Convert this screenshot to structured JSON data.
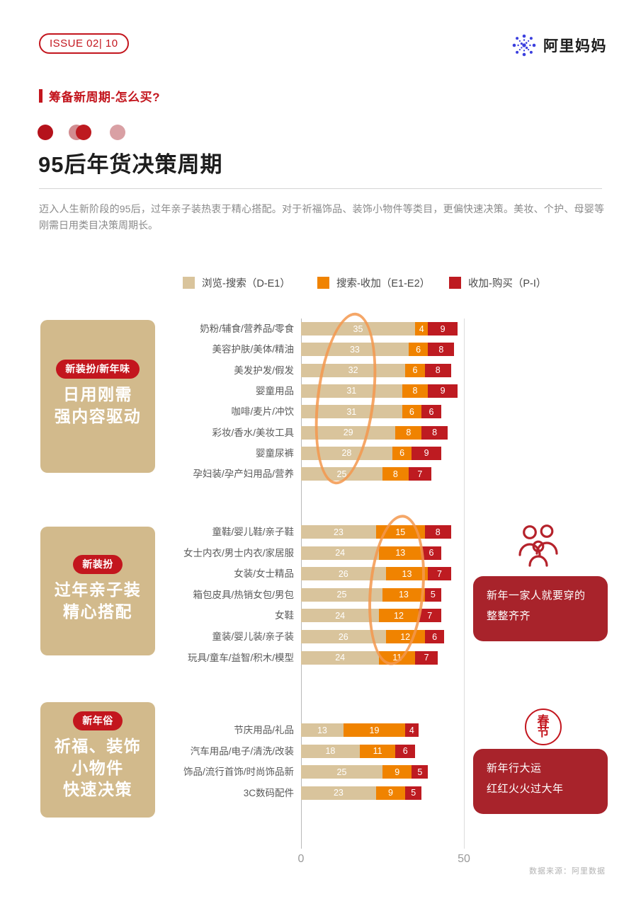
{
  "header": {
    "issue": "ISSUE 02| 10",
    "brand": "阿里妈妈"
  },
  "section": {
    "label": "筹备新周期-怎么买?",
    "title": "95后年货决策周期",
    "description": "迈入人生新阶段的95后，过年亲子装热衷于精心搭配。对于祈福饰品、装饰小物件等类目，更偏快速决策。美妆、个护、母婴等刚需日用类目决策周期长。"
  },
  "legend": [
    {
      "label": "浏览-搜索（D-E1）",
      "color": "#D9C49C"
    },
    {
      "label": "搜索-收加（E1-E2）",
      "color": "#F08300"
    },
    {
      "label": "收加-购买（P-I）",
      "color": "#BE1B21"
    }
  ],
  "chart_data": {
    "type": "bar",
    "orientation": "horizontal",
    "stacked": true,
    "xlim": [
      0,
      50
    ],
    "x_ticks": [
      0,
      50
    ],
    "grid": "vertical-ticks-only",
    "series_names": [
      "浏览-搜索（D-E1）",
      "搜索-收加（E1-E2）",
      "收加-购买（P-I）"
    ],
    "groups": [
      {
        "badge": "新装扮/新年味",
        "title_lines": [
          "日用刚需",
          "强内容驱动"
        ],
        "highlight": "first-segment-circled",
        "rows": [
          {
            "label": "奶粉/辅食/营养品/零食",
            "values": [
              35,
              4,
              9
            ]
          },
          {
            "label": "美容护肤/美体/精油",
            "values": [
              33,
              6,
              8
            ]
          },
          {
            "label": "美发护发/假发",
            "values": [
              32,
              6,
              8
            ]
          },
          {
            "label": "婴童用品",
            "values": [
              31,
              8,
              9
            ]
          },
          {
            "label": "咖啡/麦片/冲饮",
            "values": [
              31,
              6,
              6
            ]
          },
          {
            "label": "彩妆/香水/美妆工具",
            "values": [
              29,
              8,
              8
            ]
          },
          {
            "label": "婴童尿裤",
            "values": [
              28,
              6,
              9
            ]
          },
          {
            "label": "孕妇装/孕产妇用品/营养",
            "values": [
              25,
              8,
              7
            ]
          }
        ]
      },
      {
        "badge": "新装扮",
        "title_lines": [
          "过年亲子装",
          "精心搭配"
        ],
        "highlight": "middle-segment-circled",
        "callout": {
          "icon": "family-icon",
          "text_lines": [
            "新年一家人就要穿的",
            "整整齐齐"
          ]
        },
        "rows": [
          {
            "label": "童鞋/婴儿鞋/亲子鞋",
            "values": [
              23,
              15,
              8
            ]
          },
          {
            "label": "女士内衣/男士内衣/家居服",
            "values": [
              24,
              13,
              6
            ]
          },
          {
            "label": "女装/女士精品",
            "values": [
              26,
              13,
              7
            ]
          },
          {
            "label": "箱包皮具/热销女包/男包",
            "values": [
              25,
              13,
              5
            ]
          },
          {
            "label": "女鞋",
            "values": [
              24,
              12,
              7
            ]
          },
          {
            "label": "童装/婴儿装/亲子装",
            "values": [
              26,
              12,
              6
            ]
          },
          {
            "label": "玩具/童车/益智/积木/模型",
            "values": [
              24,
              11,
              7
            ]
          }
        ]
      },
      {
        "badge": "新年俗",
        "title_lines": [
          "祈福、装饰",
          "小物件",
          "快速决策"
        ],
        "callout": {
          "icon": "spring-festival-seal",
          "seal_chars": [
            "春",
            "节"
          ],
          "text_lines": [
            "新年行大运",
            "红红火火过大年"
          ]
        },
        "rows": [
          {
            "label": "节庆用品/礼品",
            "values": [
              13,
              19,
              4
            ]
          },
          {
            "label": "汽车用品/电子/清洗/改装",
            "values": [
              18,
              11,
              6
            ]
          },
          {
            "label": "饰品/流行首饰/时尚饰品新",
            "values": [
              25,
              9,
              5
            ]
          },
          {
            "label": "3C数码配件",
            "values": [
              23,
              9,
              5
            ]
          }
        ]
      }
    ]
  },
  "footer": {
    "source": "数据来源：阿里数据"
  },
  "colors": {
    "brand_red": "#C3161E",
    "bar_beige": "#D9C49C",
    "bar_orange": "#F08300",
    "bar_red": "#BE1B21",
    "card_beige": "#D2BA8C",
    "callout_red": "#A8232B",
    "logo_blue": "#3B3FDE",
    "ellipse_orange": "#F3984D"
  }
}
